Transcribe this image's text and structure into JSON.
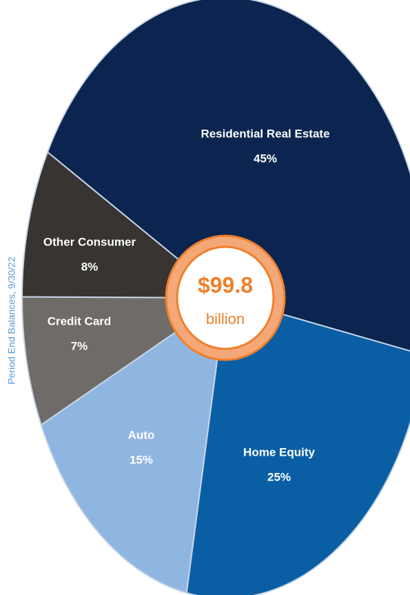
{
  "chart_data": {
    "type": "pie",
    "categories": [
      "Residential Real Estate",
      "Home Equity",
      "Auto",
      "Credit Card",
      "Other Consumer"
    ],
    "values": [
      45,
      25,
      15,
      7,
      8
    ],
    "value_labels": [
      "45%",
      "25%",
      "15%",
      "7%",
      "8%"
    ],
    "colors": [
      "#0b2550",
      "#0a5fa4",
      "#8fb6e1",
      "#6f6b68",
      "#373432"
    ],
    "center_text": [
      "$99.8",
      "billion"
    ],
    "annotation": "Period End Balances, 9/30/22"
  }
}
